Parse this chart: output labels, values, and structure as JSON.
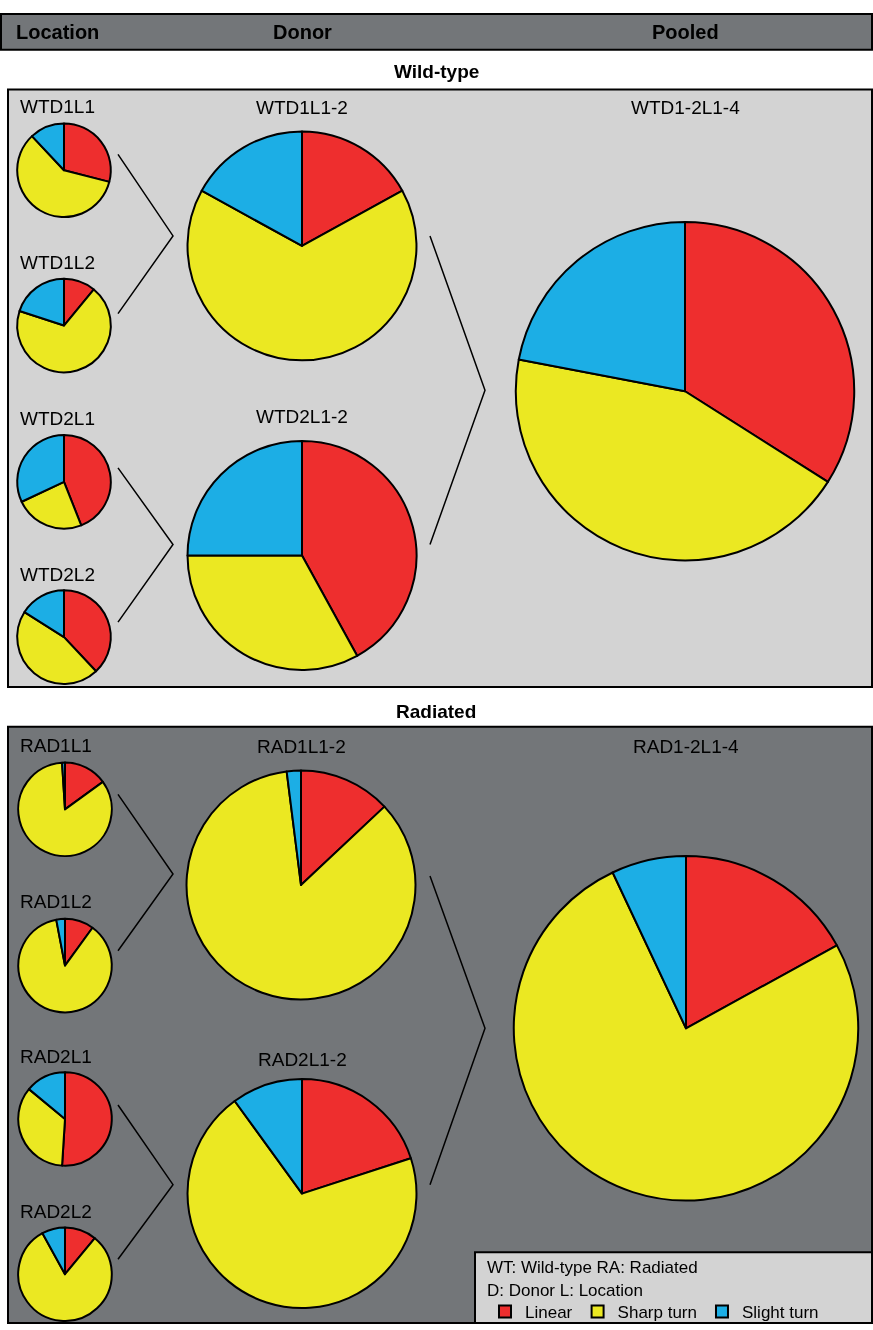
{
  "chart_data": [
    {
      "type": "other",
      "annotations": [
        "Location",
        "Donor",
        "Pooled",
        "Wild-type",
        "Radiated",
        "WT: Wild-type RA: Radiated",
        "D: Donor L: Location"
      ]
    },
    {
      "type": "pie",
      "title": "WTD1L1",
      "categories": [
        "Linear",
        "Sharp turn",
        "Slight turn"
      ],
      "values": [
        29,
        59,
        12
      ],
      "colors": [
        "#ee2e2e",
        "#ebe822",
        "#1caee5"
      ],
      "legend": "bottom right"
    },
    {
      "type": "pie",
      "title": "WTD1L1-2",
      "categories": [
        null,
        null,
        null
      ],
      "values": [
        17,
        66,
        17
      ],
      "colors": [
        "#ee2e2e",
        "#ebe822",
        "#1caee5"
      ]
    },
    {
      "type": "pie",
      "title": "WTD1-2L1-4",
      "categories": [
        null,
        null,
        null
      ],
      "values": [
        34,
        44,
        22
      ],
      "colors": [
        "#ee2e2e",
        "#ebe822",
        "#1caee5"
      ]
    },
    {
      "type": "pie",
      "title": "WTD1L2",
      "categories": [
        null,
        null,
        null
      ],
      "values": [
        11,
        69,
        20
      ],
      "colors": [
        "#ee2e2e",
        "#ebe822",
        "#1caee5"
      ]
    },
    {
      "type": "pie",
      "title": "WTD2L1",
      "categories": [
        null,
        null,
        null
      ],
      "values": [
        44,
        24,
        32
      ],
      "colors": [
        "#ee2e2e",
        "#ebe822",
        "#1caee5"
      ]
    },
    {
      "type": "pie",
      "title": "WTD2L1-2",
      "categories": [
        null,
        null,
        null
      ],
      "values": [
        42,
        33,
        25
      ],
      "colors": [
        "#ee2e2e",
        "#ebe822",
        "#1caee5"
      ]
    },
    {
      "type": "pie",
      "title": "WTD2L2",
      "categories": [
        null,
        null,
        null
      ],
      "values": [
        38,
        46,
        16
      ],
      "colors": [
        "#ee2e2e",
        "#ebe822",
        "#1caee5"
      ]
    },
    {
      "type": "pie",
      "title": "RAD1L1",
      "categories": [
        null,
        null,
        null
      ],
      "values": [
        15,
        84,
        1
      ],
      "colors": [
        "#ee2e2e",
        "#ebe822",
        "#1caee5"
      ]
    },
    {
      "type": "pie",
      "title": "RAD1L1-2",
      "categories": [
        null,
        null,
        null
      ],
      "values": [
        13,
        85,
        2
      ],
      "colors": [
        "#ee2e2e",
        "#ebe822",
        "#1caee5"
      ]
    },
    {
      "type": "pie",
      "title": "RAD1-2L1-4",
      "categories": [
        null,
        null,
        null
      ],
      "values": [
        17,
        76,
        7
      ],
      "colors": [
        "#ee2e2e",
        "#ebe822",
        "#1caee5"
      ]
    },
    {
      "type": "pie",
      "title": "RAD1L2",
      "categories": [
        null,
        null,
        null
      ],
      "values": [
        10,
        87,
        3
      ],
      "colors": [
        "#ee2e2e",
        "#ebe822",
        "#1caee5"
      ]
    },
    {
      "type": "pie",
      "title": "RAD2L1",
      "categories": [
        null,
        null,
        null
      ],
      "values": [
        51,
        35,
        14
      ],
      "colors": [
        "#ee2e2e",
        "#ebe822",
        "#1caee5"
      ]
    },
    {
      "type": "pie",
      "title": "RAD2L1-2",
      "categories": [
        null,
        null,
        null
      ],
      "values": [
        20,
        70,
        10
      ],
      "colors": [
        "#ee2e2e",
        "#ebe822",
        "#1caee5"
      ]
    },
    {
      "type": "pie",
      "title": "RAD2L2",
      "categories": [
        null,
        null,
        null
      ],
      "values": [
        11,
        81,
        8
      ],
      "colors": [
        "#ee2e2e",
        "#ebe822",
        "#1caee5"
      ]
    }
  ]
}
